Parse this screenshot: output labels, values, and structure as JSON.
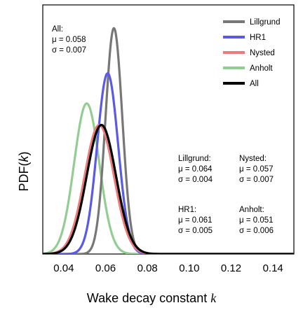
{
  "chart_data": {
    "type": "line",
    "title": "",
    "xlabel": "Wake decay constant",
    "xlabel_var": "k",
    "ylabel": "PDF(",
    "ylabel_var": "k",
    "ylabel_end": ")",
    "xlim": [
      0.03,
      0.15
    ],
    "ylim": [
      0,
      110
    ],
    "xticks": [
      "0.04",
      "0.06",
      "0.08",
      "0.10",
      "0.12",
      "0.14"
    ],
    "legend_position": "top-right",
    "grid": false,
    "series": [
      {
        "name": "Lillgrund",
        "color": "#777777",
        "mu": 0.064,
        "sigma": 0.004,
        "z": 1
      },
      {
        "name": "HR1",
        "color": "#5a5ae6",
        "mu": 0.061,
        "sigma": 0.005,
        "z": 2
      },
      {
        "name": "Nysted",
        "color": "#ec7b7b",
        "mu": 0.057,
        "sigma": 0.007,
        "z": 3
      },
      {
        "name": "Anholt",
        "color": "#94cd94",
        "mu": 0.051,
        "sigma": 0.006,
        "z": 0
      },
      {
        "name": "All",
        "color": "#000000",
        "mu": 0.058,
        "sigma": 0.007,
        "z": 4
      }
    ],
    "annotations": {
      "all": {
        "title": "All:",
        "mu": "μ = 0.058",
        "sigma": "σ = 0.007"
      },
      "lillgrund": {
        "title": "Lillgrund:",
        "mu": "μ = 0.064",
        "sigma": "σ = 0.004"
      },
      "nysted": {
        "title": "Nysted:",
        "mu": "μ = 0.057",
        "sigma": "σ = 0.007"
      },
      "hr1": {
        "title": "HR1:",
        "mu": "μ = 0.061",
        "sigma": "σ = 0.005"
      },
      "anholt": {
        "title": "Anholt:",
        "mu": "μ = 0.051",
        "sigma": "σ = 0.006"
      }
    }
  }
}
